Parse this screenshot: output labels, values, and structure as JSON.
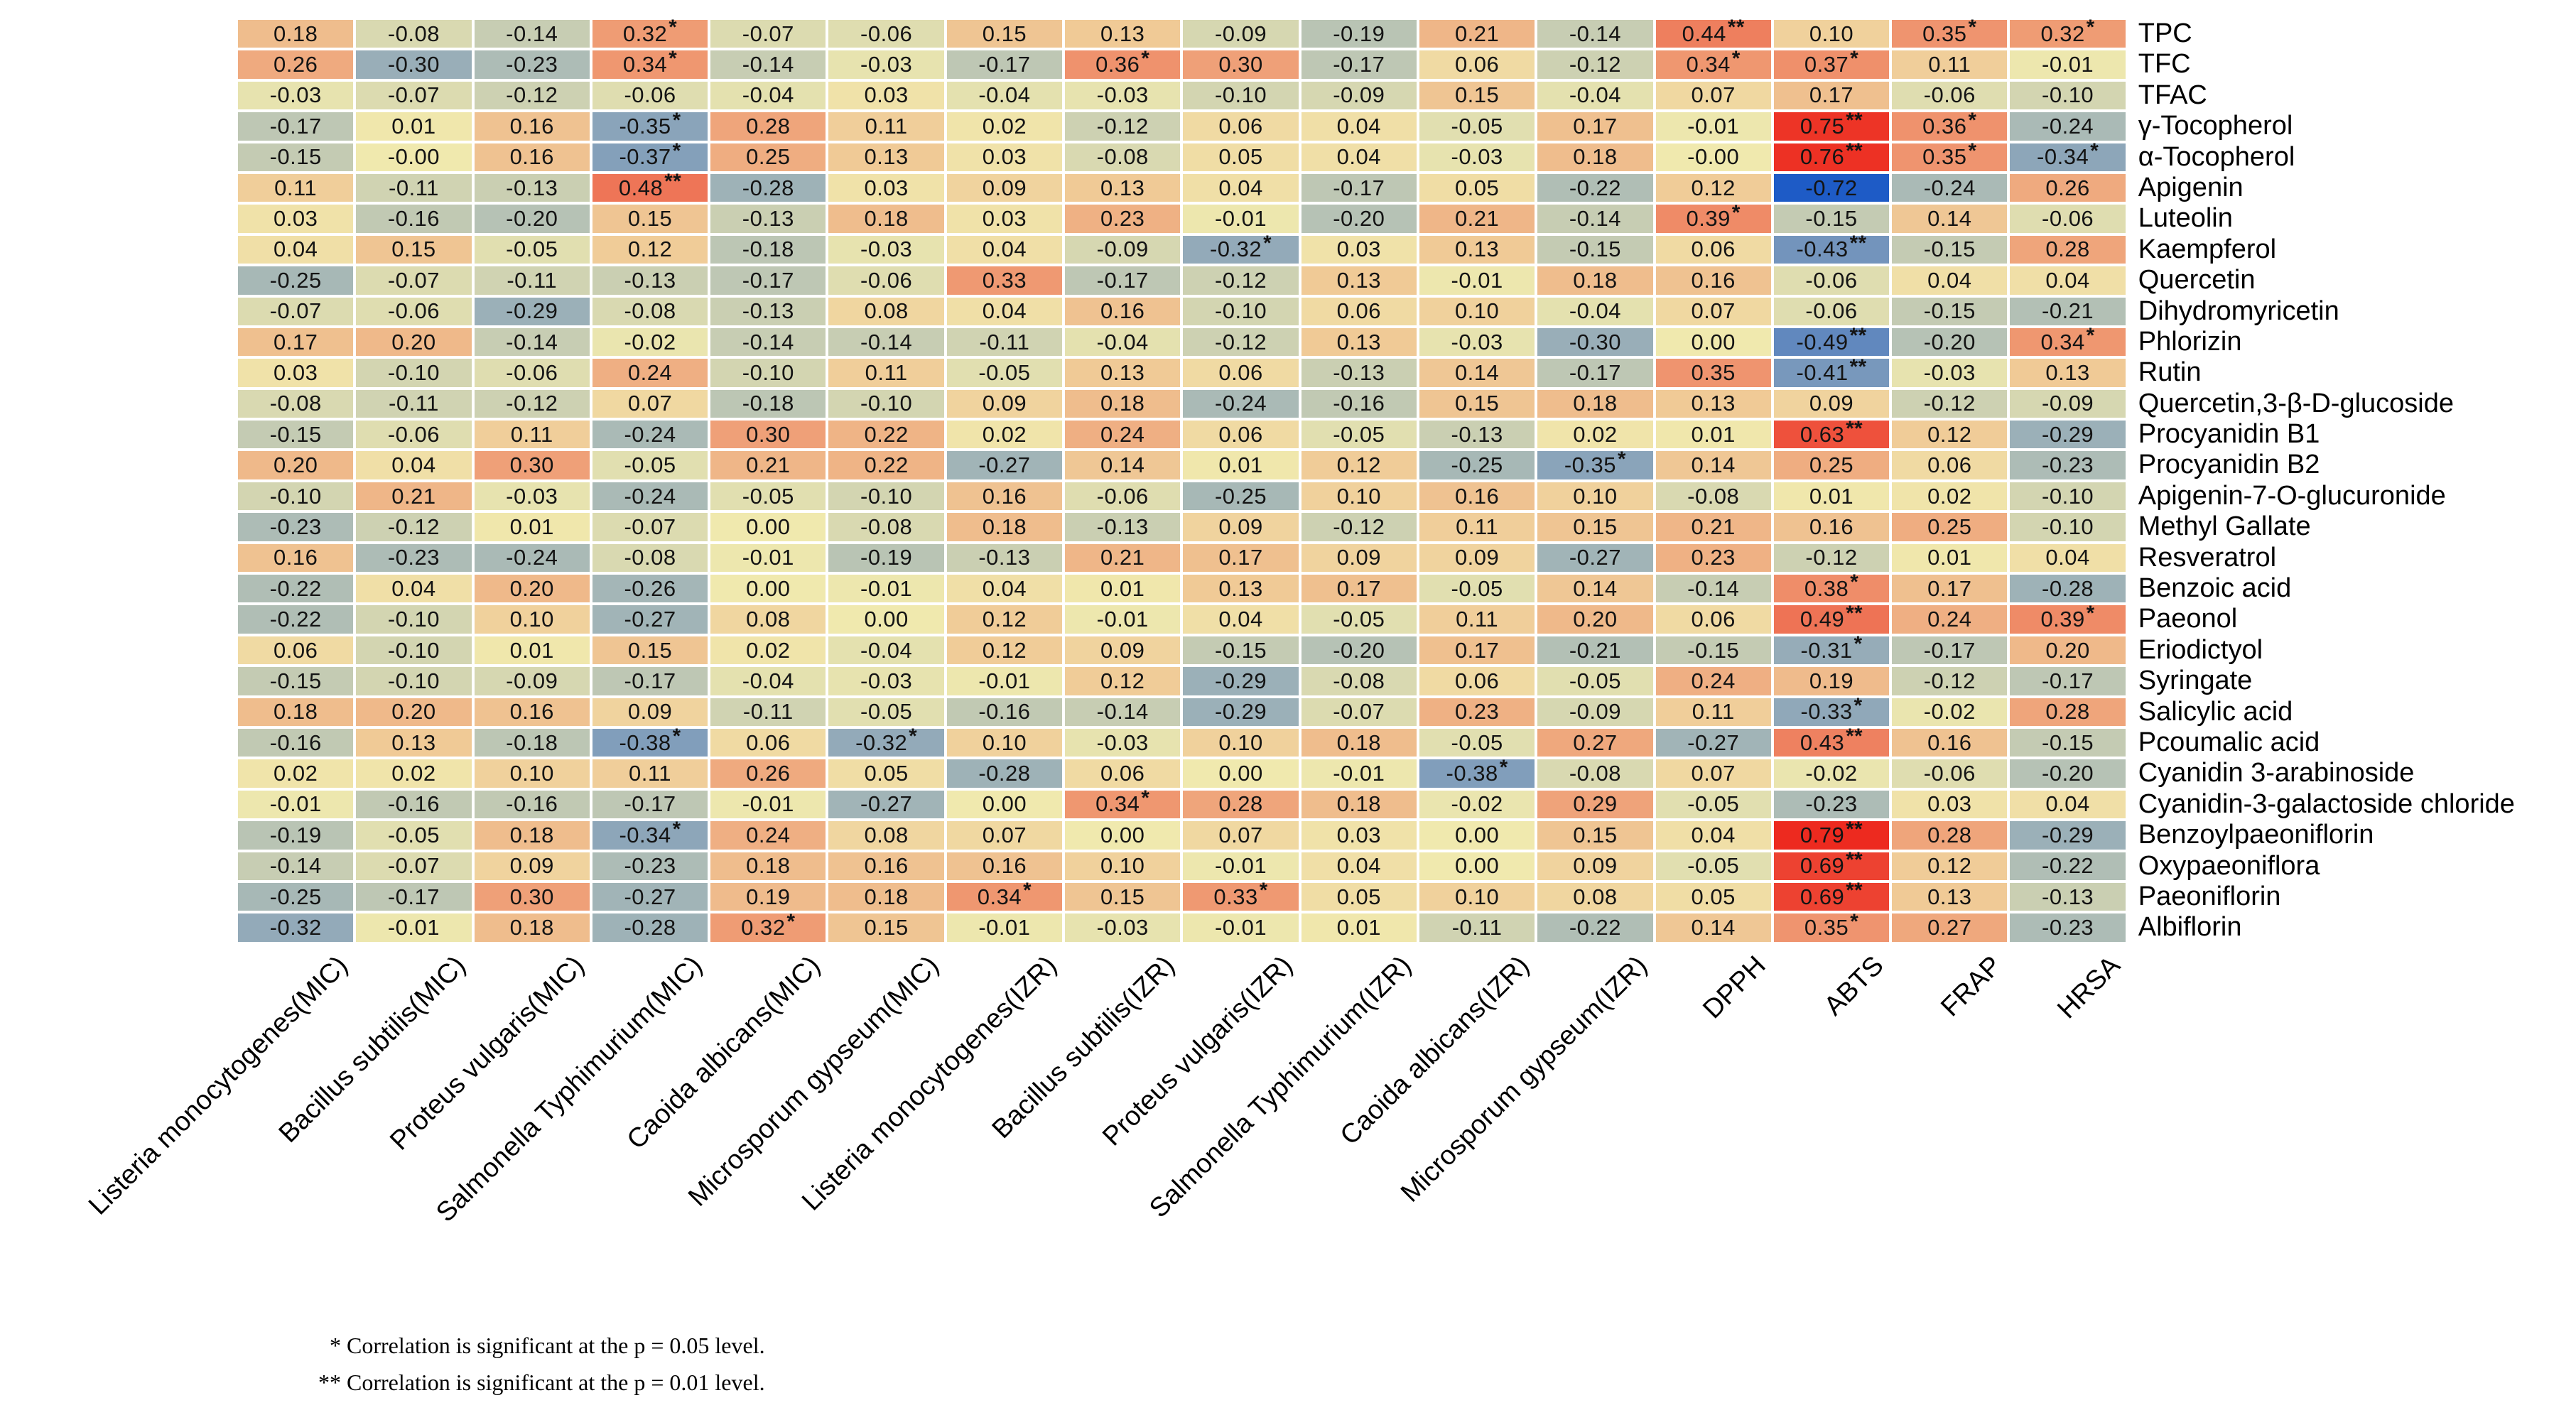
{
  "figure": {
    "footnote": {
      "line1": "* Correlation is significant at the p = 0.05 level.",
      "line2": "** Correlation is significant at the p = 0.01 level."
    }
  },
  "chart_data": {
    "type": "heatmap",
    "title": "",
    "grid": true,
    "legend_position": "none",
    "value_range": [
      -0.72,
      0.79
    ],
    "colorscale": {
      "max_value": 0.79,
      "mid_value": 0,
      "min_value": -0.72,
      "max_color": "#ED2A1F",
      "mid_color": "#F0E9AE",
      "min_color": "#1E5BC6"
    },
    "columns": [
      "Listeria monocytogenes(MIC)",
      "Bacillus subtilis(MIC)",
      "Proteus vulgaris(MIC)",
      "Salmonella Typhimurium(MIC)",
      "Caoida albicans(MIC)",
      "Microsporum gypseum(MIC)",
      "Listeria monocytogenes(IZR)",
      "Bacillus subtilis(IZR)",
      "Proteus vulgaris(IZR)",
      "Salmonella Typhimurium(IZR)",
      "Caoida albicans(IZR)",
      "Microsporum gypseum(IZR)",
      "DPPH",
      "ABTS",
      "FRAP",
      "HRSA"
    ],
    "rows": [
      {
        "label": "TPC",
        "values": [
          "0.18",
          "-0.08",
          "-0.14",
          "0.32*",
          "-0.07",
          "-0.06",
          "0.15",
          "0.13",
          "-0.09",
          "-0.19",
          "0.21",
          "-0.14",
          "0.44**",
          "0.10",
          "0.35*",
          "0.32*"
        ]
      },
      {
        "label": "TFC",
        "values": [
          "0.26",
          "-0.30",
          "-0.23",
          "0.34*",
          "-0.14",
          "-0.03",
          "-0.17",
          "0.36*",
          "0.30",
          "-0.17",
          "0.06",
          "-0.12",
          "0.34*",
          "0.37*",
          "0.11",
          "-0.01"
        ]
      },
      {
        "label": "TFAC",
        "values": [
          "-0.03",
          "-0.07",
          "-0.12",
          "-0.06",
          "-0.04",
          "0.03",
          "-0.04",
          "-0.03",
          "-0.10",
          "-0.09",
          "0.15",
          "-0.04",
          "0.07",
          "0.17",
          "-0.06",
          "-0.10"
        ]
      },
      {
        "label": "γ-Tocopherol",
        "values": [
          "-0.17",
          "0.01",
          "0.16",
          "-0.35*",
          "0.28",
          "0.11",
          "0.02",
          "-0.12",
          "0.06",
          "0.04",
          "-0.05",
          "0.17",
          "-0.01",
          "0.75**",
          "0.36*",
          "-0.24"
        ]
      },
      {
        "label": "α-Tocopherol",
        "values": [
          "-0.15",
          "-0.00",
          "0.16",
          "-0.37*",
          "0.25",
          "0.13",
          "0.03",
          "-0.08",
          "0.05",
          "0.04",
          "-0.03",
          "0.18",
          "-0.00",
          "0.76**",
          "0.35*",
          "-0.34*"
        ]
      },
      {
        "label": "Apigenin",
        "values": [
          "0.11",
          "-0.11",
          "-0.13",
          "0.48**",
          "-0.28",
          "0.03",
          "0.09",
          "0.13",
          "0.04",
          "-0.17",
          "0.05",
          "-0.22",
          "0.12",
          "-0.72",
          "-0.24",
          "0.26"
        ]
      },
      {
        "label": "Luteolin",
        "values": [
          "0.03",
          "-0.16",
          "-0.20",
          "0.15",
          "-0.13",
          "0.18",
          "0.03",
          "0.23",
          "-0.01",
          "-0.20",
          "0.21",
          "-0.14",
          "0.39*",
          "-0.15",
          "0.14",
          "-0.06"
        ]
      },
      {
        "label": "Kaempferol",
        "values": [
          "0.04",
          "0.15",
          "-0.05",
          "0.12",
          "-0.18",
          "-0.03",
          "0.04",
          "-0.09",
          "-0.32*",
          "0.03",
          "0.13",
          "-0.15",
          "0.06",
          "-0.43**",
          "-0.15",
          "0.28"
        ]
      },
      {
        "label": "Quercetin",
        "values": [
          "-0.25",
          "-0.07",
          "-0.11",
          "-0.13",
          "-0.17",
          "-0.06",
          "0.33",
          "-0.17",
          "-0.12",
          "0.13",
          "-0.01",
          "0.18",
          "0.16",
          "-0.06",
          "0.04",
          "0.04"
        ]
      },
      {
        "label": "Dihydromyricetin",
        "values": [
          "-0.07",
          "-0.06",
          "-0.29",
          "-0.08",
          "-0.13",
          "0.08",
          "0.04",
          "0.16",
          "-0.10",
          "0.06",
          "0.10",
          "-0.04",
          "0.07",
          "-0.06",
          "-0.15",
          "-0.21"
        ]
      },
      {
        "label": "Phlorizin",
        "values": [
          "0.17",
          "0.20",
          "-0.14",
          "-0.02",
          "-0.14",
          "-0.14",
          "-0.11",
          "-0.04",
          "-0.12",
          "0.13",
          "-0.03",
          "-0.30",
          "0.00",
          "-0.49**",
          "-0.20",
          "0.34*"
        ]
      },
      {
        "label": "Rutin",
        "values": [
          "0.03",
          "-0.10",
          "-0.06",
          "0.24",
          "-0.10",
          "0.11",
          "-0.05",
          "0.13",
          "0.06",
          "-0.13",
          "0.14",
          "-0.17",
          "0.35",
          "-0.41**",
          "-0.03",
          "0.13"
        ]
      },
      {
        "label": "Quercetin,3-β-D-glucoside",
        "values": [
          "-0.08",
          "-0.11",
          "-0.12",
          "0.07",
          "-0.18",
          "-0.10",
          "0.09",
          "0.18",
          "-0.24",
          "-0.16",
          "0.15",
          "0.18",
          "0.13",
          "0.09",
          "-0.12",
          "-0.09"
        ]
      },
      {
        "label": "Procyanidin B1",
        "values": [
          "-0.15",
          "-0.06",
          "0.11",
          "-0.24",
          "0.30",
          "0.22",
          "0.02",
          "0.24",
          "0.06",
          "-0.05",
          "-0.13",
          "0.02",
          "0.01",
          "0.63**",
          "0.12",
          "-0.29"
        ]
      },
      {
        "label": "Procyanidin B2",
        "values": [
          "0.20",
          "0.04",
          "0.30",
          "-0.05",
          "0.21",
          "0.22",
          "-0.27",
          "0.14",
          "0.01",
          "0.12",
          "-0.25",
          "-0.35*",
          "0.14",
          "0.25",
          "0.06",
          "-0.23"
        ]
      },
      {
        "label": "Apigenin-7-O-glucuronide",
        "values": [
          "-0.10",
          "0.21",
          "-0.03",
          "-0.24",
          "-0.05",
          "-0.10",
          "0.16",
          "-0.06",
          "-0.25",
          "0.10",
          "0.16",
          "0.10",
          "-0.08",
          "0.01",
          "0.02",
          "-0.10"
        ]
      },
      {
        "label": "Methyl Gallate",
        "values": [
          "-0.23",
          "-0.12",
          "0.01",
          "-0.07",
          "0.00",
          "-0.08",
          "0.18",
          "-0.13",
          "0.09",
          "-0.12",
          "0.11",
          "0.15",
          "0.21",
          "0.16",
          "0.25",
          "-0.10"
        ]
      },
      {
        "label": "Resveratrol",
        "values": [
          "0.16",
          "-0.23",
          "-0.24",
          "-0.08",
          "-0.01",
          "-0.19",
          "-0.13",
          "0.21",
          "0.17",
          "0.09",
          "0.09",
          "-0.27",
          "0.23",
          "-0.12",
          "0.01",
          "0.04"
        ]
      },
      {
        "label": "Benzoic acid",
        "values": [
          "-0.22",
          "0.04",
          "0.20",
          "-0.26",
          "0.00",
          "-0.01",
          "0.04",
          "0.01",
          "0.13",
          "0.17",
          "-0.05",
          "0.14",
          "-0.14",
          "0.38*",
          "0.17",
          "-0.28"
        ]
      },
      {
        "label": "Paeonol",
        "values": [
          "-0.22",
          "-0.10",
          "0.10",
          "-0.27",
          "0.08",
          "0.00",
          "0.12",
          "-0.01",
          "0.04",
          "-0.05",
          "0.11",
          "0.20",
          "0.06",
          "0.49**",
          "0.24",
          "0.39*"
        ]
      },
      {
        "label": "Eriodictyol",
        "values": [
          "0.06",
          "-0.10",
          "0.01",
          "0.15",
          "0.02",
          "-0.04",
          "0.12",
          "0.09",
          "-0.15",
          "-0.20",
          "0.17",
          "-0.21",
          "-0.15",
          "-0.31*",
          "-0.17",
          "0.20"
        ]
      },
      {
        "label": "Syringate",
        "values": [
          "-0.15",
          "-0.10",
          "-0.09",
          "-0.17",
          "-0.04",
          "-0.03",
          "-0.01",
          "0.12",
          "-0.29",
          "-0.08",
          "0.06",
          "-0.05",
          "0.24",
          "0.19",
          "-0.12",
          "-0.17"
        ]
      },
      {
        "label": "Salicylic acid",
        "values": [
          "0.18",
          "0.20",
          "0.16",
          "0.09",
          "-0.11",
          "-0.05",
          "-0.16",
          "-0.14",
          "-0.29",
          "-0.07",
          "0.23",
          "-0.09",
          "0.11",
          "-0.33*",
          "-0.02",
          "0.28"
        ]
      },
      {
        "label": "Pcoumalic acid",
        "values": [
          "-0.16",
          "0.13",
          "-0.18",
          "-0.38*",
          "0.06",
          "-0.32*",
          "0.10",
          "-0.03",
          "0.10",
          "0.18",
          "-0.05",
          "0.27",
          "-0.27",
          "0.43**",
          "0.16",
          "-0.15"
        ]
      },
      {
        "label": "Cyanidin 3-arabinoside",
        "values": [
          "0.02",
          "0.02",
          "0.10",
          "0.11",
          "0.26",
          "0.05",
          "-0.28",
          "0.06",
          "0.00",
          "-0.01",
          "-0.38*",
          "-0.08",
          "0.07",
          "-0.02",
          "-0.06",
          "-0.20"
        ]
      },
      {
        "label": "Cyanidin-3-galactoside chloride",
        "values": [
          "-0.01",
          "-0.16",
          "-0.16",
          "-0.17",
          "-0.01",
          "-0.27",
          "0.00",
          "0.34*",
          "0.28",
          "0.18",
          "-0.02",
          "0.29",
          "-0.05",
          "-0.23",
          "0.03",
          "0.04"
        ]
      },
      {
        "label": "Benzoylpaeoniflorin",
        "values": [
          "-0.19",
          "-0.05",
          "0.18",
          "-0.34*",
          "0.24",
          "0.08",
          "0.07",
          "0.00",
          "0.07",
          "0.03",
          "0.00",
          "0.15",
          "0.04",
          "0.79**",
          "0.28",
          "-0.29"
        ]
      },
      {
        "label": "Oxypaeoniflora",
        "values": [
          "-0.14",
          "-0.07",
          "0.09",
          "-0.23",
          "0.18",
          "0.16",
          "0.16",
          "0.10",
          "-0.01",
          "0.04",
          "0.00",
          "0.09",
          "-0.05",
          "0.69**",
          "0.12",
          "-0.22"
        ]
      },
      {
        "label": "Paeoniflorin",
        "values": [
          "-0.25",
          "-0.17",
          "0.30",
          "-0.27",
          "0.19",
          "0.18",
          "0.34*",
          "0.15",
          "0.33*",
          "0.05",
          "0.10",
          "0.08",
          "0.05",
          "0.69**",
          "0.13",
          "-0.13"
        ]
      },
      {
        "label": "Albiflorin",
        "values": [
          "-0.32",
          "-0.01",
          "0.18",
          "-0.28",
          "0.32*",
          "0.15",
          "-0.01",
          "-0.03",
          "-0.01",
          "0.01",
          "-0.11",
          "-0.22",
          "0.14",
          "0.35*",
          "0.27",
          "-0.23"
        ]
      }
    ]
  }
}
